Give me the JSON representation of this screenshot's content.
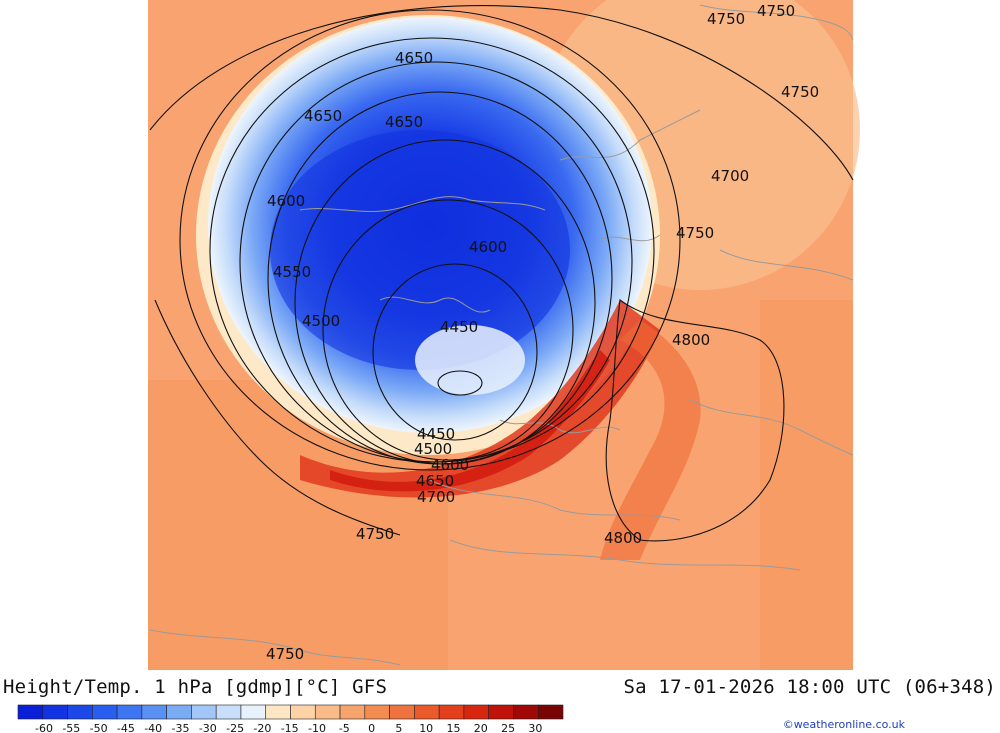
{
  "title": "Height/Temp. 1 hPa [gdmp][°C] GFS",
  "valid_time": "Sa 17-01-2026 18:00 UTC (06+348)",
  "credit": "©weatheronline.co.uk",
  "contour_labels": [
    "4750",
    "4750",
    "4750",
    "4650",
    "4650",
    "4650",
    "4700",
    "4600",
    "4600",
    "4750",
    "4550",
    "4500",
    "4450",
    "4800",
    "4450",
    "4500",
    "4600",
    "4650",
    "4700",
    "4750",
    "4800",
    "4750"
  ],
  "legend": {
    "ticks": [
      "-60",
      "-55",
      "-50",
      "-45",
      "-40",
      "-35",
      "-30",
      "-25",
      "-20",
      "-15",
      "-10",
      "-5",
      "0",
      "5",
      "10",
      "15",
      "20",
      "25",
      "30"
    ],
    "colors": [
      "#0a1fd8",
      "#1333e2",
      "#1c48ea",
      "#2a5ef0",
      "#3e76f2",
      "#5a90f4",
      "#7cabf6",
      "#a2c6f8",
      "#c8defa",
      "#e8f2fc",
      "#fde6c4",
      "#fcd2a6",
      "#f9bb88",
      "#f6a46c",
      "#f38c52",
      "#ef733e",
      "#ea5a2a",
      "#e33f1c",
      "#d82510",
      "#c01208",
      "#a00806",
      "#7a0404"
    ]
  },
  "colors": {
    "warm_background": "#f9a470",
    "cold_core": "#1840e6"
  }
}
